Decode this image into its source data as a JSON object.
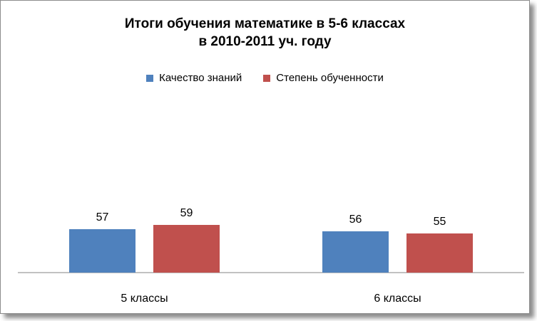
{
  "chart_data": {
    "type": "bar",
    "title": [
      "Итоги обучения математике в 5-6 классах",
      "в 2010-2011 уч. году"
    ],
    "categories": [
      "5 классы",
      "6 классы"
    ],
    "series": [
      {
        "name": "Качество знаний",
        "values": [
          57,
          56
        ],
        "color": "#4F81BD"
      },
      {
        "name": "Степень обученности",
        "values": [
          59,
          55
        ],
        "color": "#C0504D"
      }
    ],
    "xlabel": "",
    "ylabel": "",
    "ylim": [
      0,
      70
    ],
    "grid": false,
    "legend_position": "top"
  }
}
